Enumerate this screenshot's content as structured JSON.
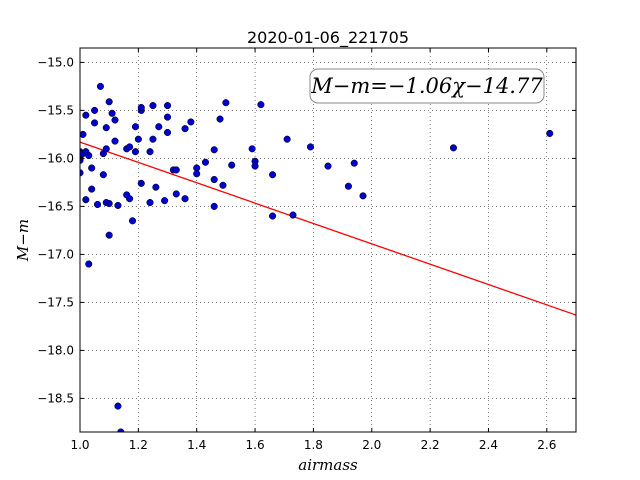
{
  "chart_data": {
    "type": "scatter",
    "title": "2020-01-06_221705",
    "xlabel": "airmass",
    "ylabel": "M−m",
    "annotation": "M−m=−1.06χ−14.77",
    "xlim": [
      1.0,
      2.7
    ],
    "ylim": [
      -18.85,
      -14.85
    ],
    "y_inverted": true,
    "grid": true,
    "x_ticks": [
      1.0,
      1.2,
      1.4,
      1.6,
      1.8,
      2.0,
      2.2,
      2.4,
      2.6
    ],
    "x_tick_labels": [
      "1.0",
      "1.2",
      "1.4",
      "1.6",
      "1.8",
      "2.0",
      "2.2",
      "2.4",
      "2.6"
    ],
    "y_ticks": [
      -15.0,
      -15.5,
      -16.0,
      -16.5,
      -17.0,
      -17.5,
      -18.0,
      -18.5
    ],
    "y_tick_labels": [
      "−15.0",
      "−15.5",
      "−16.0",
      "−16.5",
      "−17.0",
      "−17.5",
      "−18.0",
      "−18.5"
    ],
    "fit": {
      "slope": -1.06,
      "intercept": -14.77,
      "color": "#ff0000"
    },
    "point_color": "#0000cc",
    "x": [
      1.0,
      1.0,
      1.0,
      1.0,
      1.01,
      1.01,
      1.02,
      1.02,
      1.02,
      1.03,
      1.03,
      1.04,
      1.04,
      1.05,
      1.05,
      1.06,
      1.07,
      1.08,
      1.08,
      1.09,
      1.09,
      1.09,
      1.1,
      1.1,
      1.1,
      1.11,
      1.12,
      1.12,
      1.13,
      1.13,
      1.14,
      1.16,
      1.16,
      1.17,
      1.17,
      1.18,
      1.19,
      1.19,
      1.2,
      1.21,
      1.21,
      1.21,
      1.24,
      1.24,
      1.25,
      1.25,
      1.26,
      1.27,
      1.29,
      1.3,
      1.3,
      1.3,
      1.32,
      1.33,
      1.33,
      1.36,
      1.36,
      1.38,
      1.4,
      1.4,
      1.43,
      1.46,
      1.46,
      1.46,
      1.48,
      1.49,
      1.5,
      1.52,
      1.59,
      1.6,
      1.6,
      1.62,
      1.66,
      1.66,
      1.71,
      1.73,
      1.79,
      1.85,
      1.92,
      1.94,
      1.97,
      2.28,
      2.61
    ],
    "y": [
      -15.93,
      -16.0,
      -16.02,
      -16.15,
      -15.75,
      -15.95,
      -15.55,
      -15.93,
      -16.43,
      -15.97,
      -17.1,
      -16.1,
      -16.32,
      -15.5,
      -15.63,
      -16.48,
      -15.25,
      -15.95,
      -16.17,
      -16.46,
      -15.68,
      -15.9,
      -16.8,
      -15.41,
      -16.47,
      -15.53,
      -15.6,
      -15.82,
      -16.49,
      -18.58,
      -18.85,
      -16.38,
      -15.9,
      -16.42,
      -15.88,
      -16.65,
      -15.67,
      -15.93,
      -15.8,
      -16.26,
      -15.5,
      -15.47,
      -15.93,
      -16.46,
      -15.45,
      -15.8,
      -16.3,
      -15.67,
      -16.44,
      -15.57,
      -15.73,
      -15.45,
      -16.12,
      -16.37,
      -16.12,
      -16.42,
      -15.69,
      -15.62,
      -16.1,
      -16.16,
      -16.04,
      -16.22,
      -16.5,
      -15.91,
      -15.59,
      -16.28,
      -15.42,
      -16.07,
      -15.9,
      -16.03,
      -16.08,
      -15.44,
      -16.17,
      -16.6,
      -15.8,
      -16.59,
      -15.88,
      -16.08,
      -16.29,
      -16.05,
      -16.39,
      -15.89,
      -15.74
    ]
  }
}
